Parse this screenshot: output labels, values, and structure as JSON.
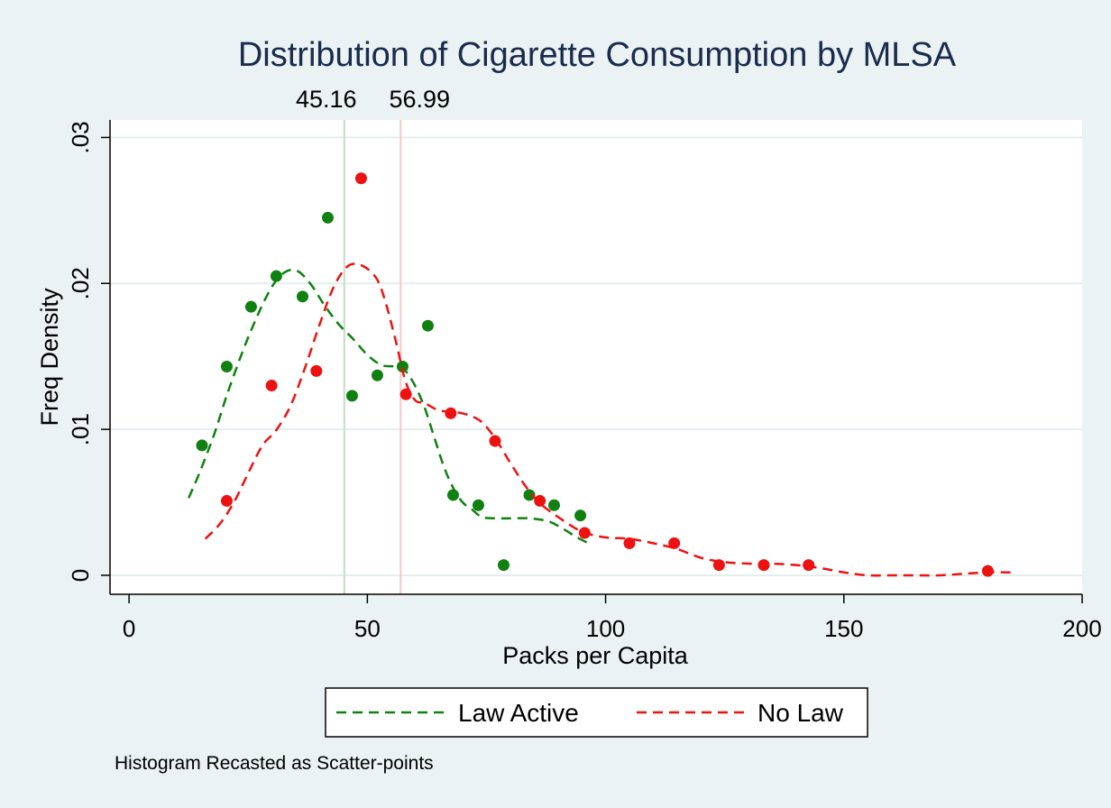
{
  "chart_data": {
    "type": "scatter",
    "title": "Distribution of Cigarette Consumption by MLSA",
    "xlabel": "Packs per Capita",
    "ylabel": "Freq Density",
    "xlim": [
      -4,
      200
    ],
    "ylim": [
      -0.0013,
      0.0312
    ],
    "x_ticks": [
      0,
      50,
      100,
      150,
      200
    ],
    "x_tick_labels": [
      "0",
      "50",
      "100",
      "150",
      "200"
    ],
    "y_ticks": [
      0,
      0.01,
      0.02,
      0.03
    ],
    "y_tick_labels": [
      "0",
      ".01",
      ".02",
      ".03"
    ],
    "grid": true,
    "legend_position": "bottom",
    "note": "Histogram Recasted as Scatter-points",
    "reference_lines": [
      {
        "x": 45.16,
        "label": "45.16",
        "color": "#c3dcc4"
      },
      {
        "x": 56.99,
        "label": "56.99",
        "color": "#f7c8c8"
      }
    ],
    "series": [
      {
        "name": "Law Active",
        "color": "#108010",
        "points": {
          "x": [
            15.3,
            20.5,
            25.6,
            30.9,
            36.4,
            41.7,
            46.8,
            52.1,
            57.4,
            62.7,
            68.0,
            73.3,
            78.6,
            84.0,
            89.2,
            94.7
          ],
          "y": [
            0.0089,
            0.0143,
            0.0184,
            0.0205,
            0.0191,
            0.0245,
            0.0123,
            0.0137,
            0.0143,
            0.0171,
            0.0055,
            0.0048,
            0.0007,
            0.0055,
            0.0048,
            0.0041
          ]
        },
        "density": {
          "x": [
            12.5,
            15,
            18,
            21,
            25,
            29,
            32,
            35,
            38,
            41,
            44,
            47,
            50,
            53,
            56,
            58,
            60,
            62,
            64,
            66,
            68,
            70,
            72,
            74,
            77,
            80,
            84,
            88,
            91,
            94,
            97
          ],
          "y": [
            0.0053,
            0.0072,
            0.0098,
            0.0128,
            0.0163,
            0.0192,
            0.0206,
            0.0209,
            0.02,
            0.0185,
            0.0172,
            0.0162,
            0.0151,
            0.0144,
            0.0143,
            0.014,
            0.013,
            0.0115,
            0.0095,
            0.0075,
            0.006,
            0.005,
            0.0045,
            0.004,
            0.0039,
            0.0039,
            0.0039,
            0.0037,
            0.0032,
            0.0026,
            0.0021
          ]
        }
      },
      {
        "name": "No Law",
        "color": "#ee1111",
        "points": {
          "x": [
            20.5,
            29.9,
            39.3,
            48.7,
            58.1,
            67.5,
            76.8,
            86.2,
            95.6,
            105.0,
            114.4,
            123.8,
            133.2,
            142.6,
            180.2
          ],
          "y": [
            0.0051,
            0.013,
            0.014,
            0.0272,
            0.0124,
            0.0111,
            0.0092,
            0.0051,
            0.0029,
            0.0022,
            0.0022,
            0.0007,
            0.0007,
            0.0007,
            0.0003
          ]
        },
        "density": {
          "x": [
            16,
            19,
            22,
            25,
            28,
            31,
            34,
            37,
            40,
            43,
            46,
            49,
            52,
            54,
            56,
            58,
            60,
            62,
            65,
            68,
            71,
            74,
            77,
            80,
            83,
            86,
            90,
            95,
            100,
            105,
            110,
            115,
            120,
            125,
            130,
            135,
            140,
            145,
            150,
            155,
            160,
            165,
            170,
            175,
            180,
            185
          ],
          "y": [
            0.0025,
            0.0035,
            0.005,
            0.007,
            0.0089,
            0.01,
            0.0117,
            0.0143,
            0.0172,
            0.0198,
            0.0212,
            0.0212,
            0.0203,
            0.0185,
            0.016,
            0.0133,
            0.012,
            0.0118,
            0.0113,
            0.0112,
            0.011,
            0.0105,
            0.0093,
            0.0077,
            0.0062,
            0.005,
            0.004,
            0.003,
            0.0026,
            0.0025,
            0.0022,
            0.0018,
            0.0012,
            0.0009,
            0.0008,
            0.0008,
            0.0007,
            0.0005,
            0.0002,
            0.0,
            0.0,
            0.0,
            0.0,
            0.0001,
            0.0002,
            0.0002
          ]
        }
      }
    ]
  }
}
